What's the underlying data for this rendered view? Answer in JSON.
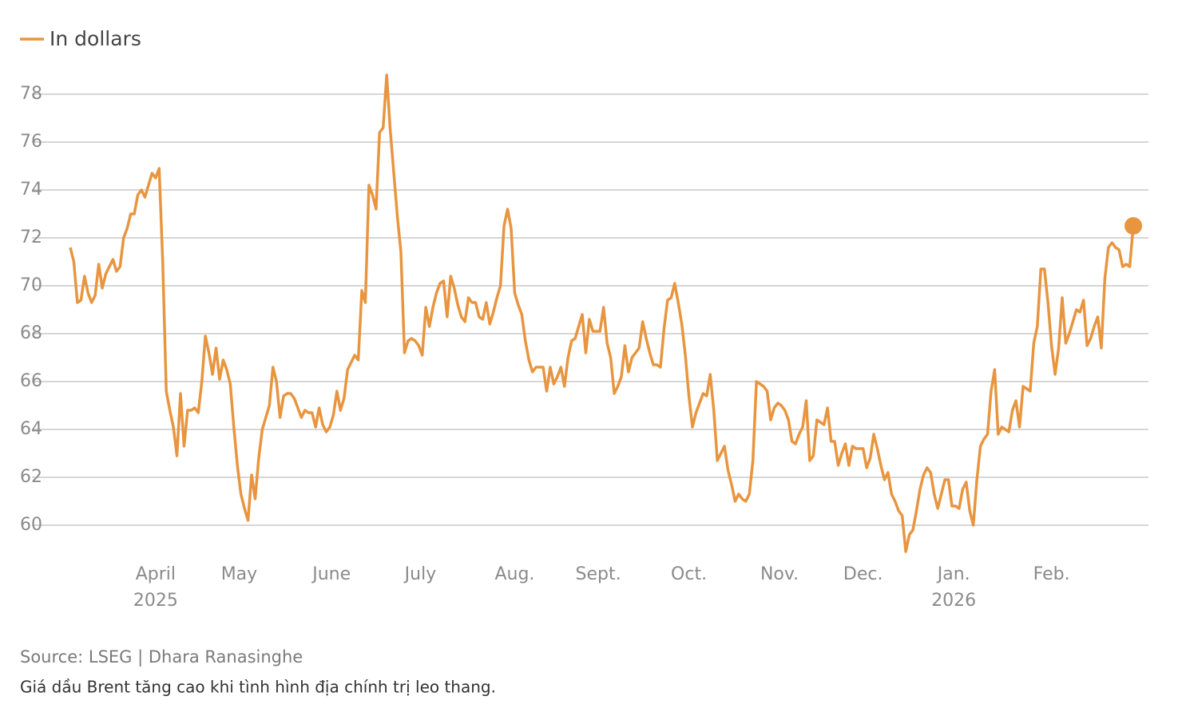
{
  "chart_data": {
    "type": "line",
    "series": [
      {
        "name": "In dollars",
        "color": "#e8953f",
        "values": [
          71.6,
          71.0,
          69.3,
          69.4,
          70.4,
          69.7,
          69.3,
          69.6,
          70.9,
          69.9,
          70.5,
          70.8,
          71.1,
          70.6,
          70.8,
          72.0,
          72.4,
          73.0,
          73.0,
          73.8,
          74.0,
          73.7,
          74.2,
          74.7,
          74.5,
          74.9,
          71.0,
          65.6,
          64.8,
          64.1,
          62.9,
          65.5,
          63.3,
          64.8,
          64.8,
          64.9,
          64.7,
          66.0,
          67.9,
          67.2,
          66.3,
          67.4,
          66.1,
          66.9,
          66.5,
          65.9,
          64.1,
          62.5,
          61.3,
          60.7,
          60.2,
          62.1,
          61.1,
          62.8,
          64.0,
          64.5,
          65.0,
          66.6,
          66.0,
          64.5,
          65.4,
          65.5,
          65.5,
          65.3,
          64.9,
          64.5,
          64.8,
          64.7,
          64.7,
          64.1,
          64.9,
          64.2,
          63.9,
          64.1,
          64.6,
          65.6,
          64.8,
          65.3,
          66.5,
          66.8,
          67.1,
          66.9,
          69.8,
          69.3,
          74.2,
          73.8,
          73.2,
          76.4,
          76.6,
          78.8,
          76.5,
          74.7,
          72.9,
          71.4,
          67.2,
          67.7,
          67.8,
          67.7,
          67.5,
          67.1,
          69.1,
          68.3,
          69.1,
          69.7,
          70.1,
          70.2,
          68.7,
          70.4,
          69.9,
          69.2,
          68.7,
          68.5,
          69.5,
          69.3,
          69.3,
          68.7,
          68.6,
          69.3,
          68.4,
          68.9,
          69.5,
          70.0,
          72.5,
          73.2,
          72.4,
          69.7,
          69.2,
          68.8,
          67.7,
          66.9,
          66.4,
          66.6,
          66.6,
          66.6,
          65.6,
          66.6,
          65.9,
          66.2,
          66.6,
          65.8,
          67.0,
          67.7,
          67.8,
          68.3,
          68.8,
          67.2,
          68.6,
          68.1,
          68.1,
          68.1,
          69.1,
          67.6,
          67.0,
          65.5,
          65.8,
          66.2,
          67.5,
          66.4,
          67.0,
          67.2,
          67.4,
          68.5,
          67.8,
          67.2,
          66.7,
          66.7,
          66.6,
          68.2,
          69.4,
          69.5,
          70.1,
          69.3,
          68.4,
          67.1,
          65.4,
          64.1,
          64.7,
          65.1,
          65.5,
          65.4,
          66.3,
          64.8,
          62.7,
          63.0,
          63.3,
          62.3,
          61.7,
          61.0,
          61.3,
          61.1,
          61.0,
          61.3,
          62.7,
          66.0,
          65.9,
          65.8,
          65.6,
          64.4,
          64.9,
          65.1,
          65.0,
          64.8,
          64.4,
          63.5,
          63.4,
          63.8,
          64.1,
          65.2,
          62.7,
          62.9,
          64.4,
          64.3,
          64.2,
          64.9,
          63.5,
          63.5,
          62.5,
          63.0,
          63.4,
          62.5,
          63.3,
          63.2,
          63.2,
          63.2,
          62.4,
          62.8,
          63.8,
          63.2,
          62.5,
          61.9,
          62.2,
          61.3,
          61.0,
          60.6,
          60.4,
          58.9,
          59.6,
          59.8,
          60.6,
          61.5,
          62.1,
          62.4,
          62.2,
          61.3,
          60.7,
          61.3,
          61.9,
          61.9,
          60.8,
          60.8,
          60.7,
          61.5,
          61.8,
          60.6,
          60.0,
          61.9,
          63.3,
          63.6,
          63.8,
          65.6,
          66.5,
          63.8,
          64.1,
          64.0,
          63.9,
          64.8,
          65.2,
          64.1,
          65.8,
          65.7,
          65.6,
          67.6,
          68.3,
          70.7,
          70.7,
          69.3,
          67.5,
          66.3,
          67.4,
          69.5,
          67.6,
          68.0,
          68.5,
          69.0,
          68.9,
          69.4,
          67.5,
          67.8,
          68.3,
          68.7,
          67.4,
          70.3,
          71.6,
          71.8,
          71.6,
          71.5,
          70.8,
          70.9,
          70.8,
          72.5
        ]
      }
    ],
    "xlim": [
      0,
      299
    ],
    "xticks": [
      {
        "value": 24,
        "label": "April 2025"
      },
      {
        "value": 47.5,
        "label": "May"
      },
      {
        "value": 73.5,
        "label": "June"
      },
      {
        "value": 98.5,
        "label": "July"
      },
      {
        "value": 125,
        "label": "Aug."
      },
      {
        "value": 148.5,
        "label": "Sept."
      },
      {
        "value": 174,
        "label": "Oct."
      },
      {
        "value": 199.5,
        "label": "Nov."
      },
      {
        "value": 223,
        "label": "Dec."
      },
      {
        "value": 248.5,
        "label": "Jan. 2026"
      },
      {
        "value": 276,
        "label": "Feb."
      }
    ],
    "ylim": [
      58.6,
      79.2
    ],
    "yticks": [
      60,
      62,
      64,
      66,
      68,
      70,
      72,
      74,
      76,
      78
    ],
    "grid": true,
    "legend": "top-left",
    "highlight_last": true,
    "source": "Source: LSEG | Dhara Ranasinghe",
    "caption": "Giá dầu Brent tăng cao khi tình hình địa chính trị leo thang."
  }
}
